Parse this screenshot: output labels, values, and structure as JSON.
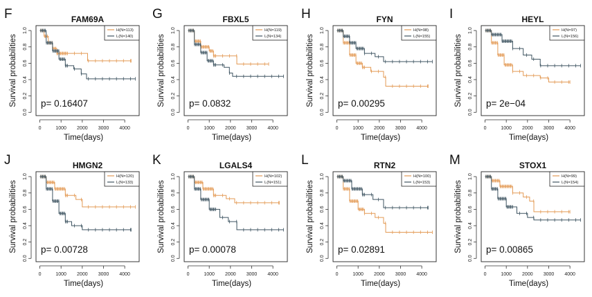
{
  "colors": {
    "high": "#E39A55",
    "low": "#3E5461"
  },
  "chart_data": [
    {
      "type": "line",
      "panel": "F",
      "title": "FAM69A",
      "p_label": "p= 0.16407",
      "legend": [
        "H(N=113)",
        "L(N=140)"
      ],
      "xlabel": "Time(days)",
      "ylabel": "Survival probabilities",
      "xticks": [
        0,
        1000,
        2000,
        3000,
        4000
      ],
      "yticks": [
        "0.0",
        "0.2",
        "0.4",
        "0.6",
        "0.8",
        "1.0"
      ],
      "xlim": [
        -180,
        4680
      ],
      "ylim": [
        -0.04,
        1.06
      ],
      "series": [
        {
          "name": "H",
          "end": 4300,
          "steps": [
            [
              0,
              1
            ],
            [
              200,
              0.93
            ],
            [
              400,
              0.85
            ],
            [
              600,
              0.78
            ],
            [
              800,
              0.72
            ],
            [
              2250,
              0.63
            ]
          ]
        },
        {
          "name": "L",
          "end": 4500,
          "steps": [
            [
              0,
              1
            ],
            [
              300,
              0.85
            ],
            [
              600,
              0.75
            ],
            [
              900,
              0.65
            ],
            [
              1200,
              0.57
            ],
            [
              1600,
              0.53
            ],
            [
              1950,
              0.47
            ],
            [
              2200,
              0.41
            ]
          ]
        }
      ]
    },
    {
      "type": "line",
      "panel": "G",
      "title": "FBXL5",
      "p_label": "p= 0.0832",
      "legend": [
        "H(N=119)",
        "L(N=134)"
      ],
      "xlabel": "Time(days)",
      "ylabel": "Survival probabilities",
      "xticks": [
        0,
        1000,
        2000,
        3000,
        4000
      ],
      "yticks": [
        "0.0",
        "0.2",
        "0.4",
        "0.6",
        "0.8",
        "1.0"
      ],
      "xlim": [
        -180,
        4680
      ],
      "ylim": [
        -0.04,
        1.06
      ],
      "series": [
        {
          "name": "H",
          "end": 3800,
          "steps": [
            [
              0,
              1
            ],
            [
              300,
              0.87
            ],
            [
              600,
              0.8
            ],
            [
              1000,
              0.75
            ],
            [
              1200,
              0.69
            ],
            [
              2300,
              0.59
            ]
          ]
        },
        {
          "name": "L",
          "end": 4500,
          "steps": [
            [
              0,
              1
            ],
            [
              300,
              0.83
            ],
            [
              600,
              0.73
            ],
            [
              900,
              0.63
            ],
            [
              1200,
              0.58
            ],
            [
              1700,
              0.55
            ],
            [
              1950,
              0.48
            ],
            [
              2100,
              0.44
            ]
          ]
        }
      ]
    },
    {
      "type": "line",
      "panel": "H",
      "title": "FYN",
      "p_label": "p= 0.00295",
      "legend": [
        "H(N=98)",
        "L(N=155)"
      ],
      "xlabel": "Time(days)",
      "ylabel": "Survival probabilities",
      "xticks": [
        0,
        1000,
        2000,
        3000,
        4000
      ],
      "yticks": [
        "0.0",
        "0.2",
        "0.4",
        "0.6",
        "0.8",
        "1.0"
      ],
      "xlim": [
        -180,
        4680
      ],
      "ylim": [
        -0.04,
        1.06
      ],
      "series": [
        {
          "name": "H",
          "end": 4300,
          "steps": [
            [
              0,
              1
            ],
            [
              300,
              0.85
            ],
            [
              600,
              0.7
            ],
            [
              900,
              0.6
            ],
            [
              1200,
              0.55
            ],
            [
              1600,
              0.5
            ],
            [
              2200,
              0.43
            ],
            [
              2300,
              0.32
            ]
          ]
        },
        {
          "name": "L",
          "end": 4500,
          "steps": [
            [
              0,
              1
            ],
            [
              300,
              0.93
            ],
            [
              600,
              0.85
            ],
            [
              900,
              0.78
            ],
            [
              1300,
              0.72
            ],
            [
              1800,
              0.68
            ],
            [
              2200,
              0.62
            ]
          ]
        }
      ]
    },
    {
      "type": "line",
      "panel": "I",
      "title": "HEYL",
      "p_label": "p= 2e−04",
      "legend": [
        "H(N=97)",
        "L(N=156)"
      ],
      "xlabel": "Time(days)",
      "ylabel": "Survival probabilities",
      "xticks": [
        0,
        1000,
        2000,
        3000,
        4000
      ],
      "yticks": [
        "0.0",
        "0.2",
        "0.4",
        "0.6",
        "0.8",
        "1.0"
      ],
      "xlim": [
        -180,
        4680
      ],
      "ylim": [
        -0.04,
        1.06
      ],
      "series": [
        {
          "name": "H",
          "end": 4000,
          "steps": [
            [
              0,
              1
            ],
            [
              300,
              0.85
            ],
            [
              600,
              0.7
            ],
            [
              900,
              0.58
            ],
            [
              1300,
              0.5
            ],
            [
              1800,
              0.45
            ],
            [
              2600,
              0.42
            ],
            [
              3000,
              0.37
            ]
          ]
        },
        {
          "name": "L",
          "end": 4500,
          "steps": [
            [
              0,
              1
            ],
            [
              300,
              0.95
            ],
            [
              800,
              0.87
            ],
            [
              1300,
              0.78
            ],
            [
              1800,
              0.7
            ],
            [
              2200,
              0.65
            ],
            [
              2600,
              0.57
            ]
          ]
        }
      ]
    },
    {
      "type": "line",
      "panel": "J",
      "title": "HMGN2",
      "p_label": "p= 0.00728",
      "legend": [
        "H(N=120)",
        "L(N=133)"
      ],
      "xlabel": "Time(days)",
      "ylabel": "Survival probabilities",
      "xticks": [
        0,
        1000,
        2000,
        3000,
        4000
      ],
      "yticks": [
        "0.0",
        "0.2",
        "0.4",
        "0.6",
        "0.8",
        "1.0"
      ],
      "xlim": [
        -180,
        4680
      ],
      "ylim": [
        -0.04,
        1.06
      ],
      "series": [
        {
          "name": "H",
          "end": 4500,
          "steps": [
            [
              0,
              1
            ],
            [
              300,
              0.93
            ],
            [
              700,
              0.85
            ],
            [
              1200,
              0.77
            ],
            [
              1700,
              0.72
            ],
            [
              2000,
              0.63
            ]
          ]
        },
        {
          "name": "L",
          "end": 4300,
          "steps": [
            [
              0,
              1
            ],
            [
              300,
              0.85
            ],
            [
              600,
              0.7
            ],
            [
              900,
              0.55
            ],
            [
              1200,
              0.45
            ],
            [
              1500,
              0.4
            ],
            [
              2000,
              0.35
            ]
          ]
        }
      ]
    },
    {
      "type": "line",
      "panel": "K",
      "title": "LGALS4",
      "p_label": "p= 0.00078",
      "legend": [
        "H(N=102)",
        "L(N=151)"
      ],
      "xlabel": "Time(days)",
      "ylabel": "Survival probabilities",
      "xticks": [
        0,
        1000,
        2000,
        3000,
        4000
      ],
      "yticks": [
        "0.0",
        "0.2",
        "0.4",
        "0.6",
        "0.8",
        "1.0"
      ],
      "xlim": [
        -180,
        4680
      ],
      "ylim": [
        -0.04,
        1.06
      ],
      "series": [
        {
          "name": "H",
          "end": 4300,
          "steps": [
            [
              0,
              1
            ],
            [
              300,
              0.93
            ],
            [
              700,
              0.85
            ],
            [
              1200,
              0.77
            ],
            [
              1800,
              0.73
            ],
            [
              2200,
              0.68
            ]
          ]
        },
        {
          "name": "L",
          "end": 4500,
          "steps": [
            [
              0,
              1
            ],
            [
              300,
              0.85
            ],
            [
              600,
              0.72
            ],
            [
              1000,
              0.6
            ],
            [
              1500,
              0.5
            ],
            [
              1900,
              0.45
            ],
            [
              2300,
              0.35
            ]
          ]
        }
      ]
    },
    {
      "type": "line",
      "panel": "L",
      "title": "RTN2",
      "p_label": "p= 0.02891",
      "legend": [
        "H(N=100)",
        "L(N=153)"
      ],
      "xlabel": "Time(days)",
      "ylabel": "Survival probabilities",
      "xticks": [
        0,
        1000,
        2000,
        3000,
        4000
      ],
      "yticks": [
        "0.0",
        "0.2",
        "0.4",
        "0.6",
        "0.8",
        "1.0"
      ],
      "xlim": [
        -180,
        4680
      ],
      "ylim": [
        -0.04,
        1.06
      ],
      "series": [
        {
          "name": "H",
          "end": 4500,
          "steps": [
            [
              0,
              1
            ],
            [
              300,
              0.85
            ],
            [
              600,
              0.7
            ],
            [
              1000,
              0.6
            ],
            [
              1300,
              0.55
            ],
            [
              1800,
              0.5
            ],
            [
              2200,
              0.43
            ],
            [
              2300,
              0.32
            ]
          ]
        },
        {
          "name": "L",
          "end": 4300,
          "steps": [
            [
              0,
              1
            ],
            [
              300,
              0.95
            ],
            [
              700,
              0.85
            ],
            [
              1200,
              0.78
            ],
            [
              1700,
              0.72
            ],
            [
              2200,
              0.62
            ]
          ]
        }
      ]
    },
    {
      "type": "line",
      "panel": "M",
      "title": "STOX1",
      "p_label": "p= 0.00865",
      "legend": [
        "H(N=99)",
        "L(N=154)"
      ],
      "xlabel": "Time(days)",
      "ylabel": "Survival probabilities",
      "xticks": [
        0,
        1000,
        2000,
        3000,
        4000
      ],
      "yticks": [
        "0.0",
        "0.2",
        "0.4",
        "0.6",
        "0.8",
        "1.0"
      ],
      "xlim": [
        -180,
        4680
      ],
      "ylim": [
        -0.04,
        1.06
      ],
      "series": [
        {
          "name": "H",
          "end": 4000,
          "steps": [
            [
              0,
              1
            ],
            [
              300,
              0.95
            ],
            [
              700,
              0.88
            ],
            [
              1300,
              0.8
            ],
            [
              1800,
              0.75
            ],
            [
              2100,
              0.7
            ],
            [
              2300,
              0.57
            ]
          ]
        },
        {
          "name": "L",
          "end": 4500,
          "steps": [
            [
              0,
              1
            ],
            [
              300,
              0.85
            ],
            [
              600,
              0.73
            ],
            [
              1000,
              0.63
            ],
            [
              1500,
              0.55
            ],
            [
              2000,
              0.5
            ],
            [
              2300,
              0.47
            ]
          ]
        }
      ]
    }
  ]
}
